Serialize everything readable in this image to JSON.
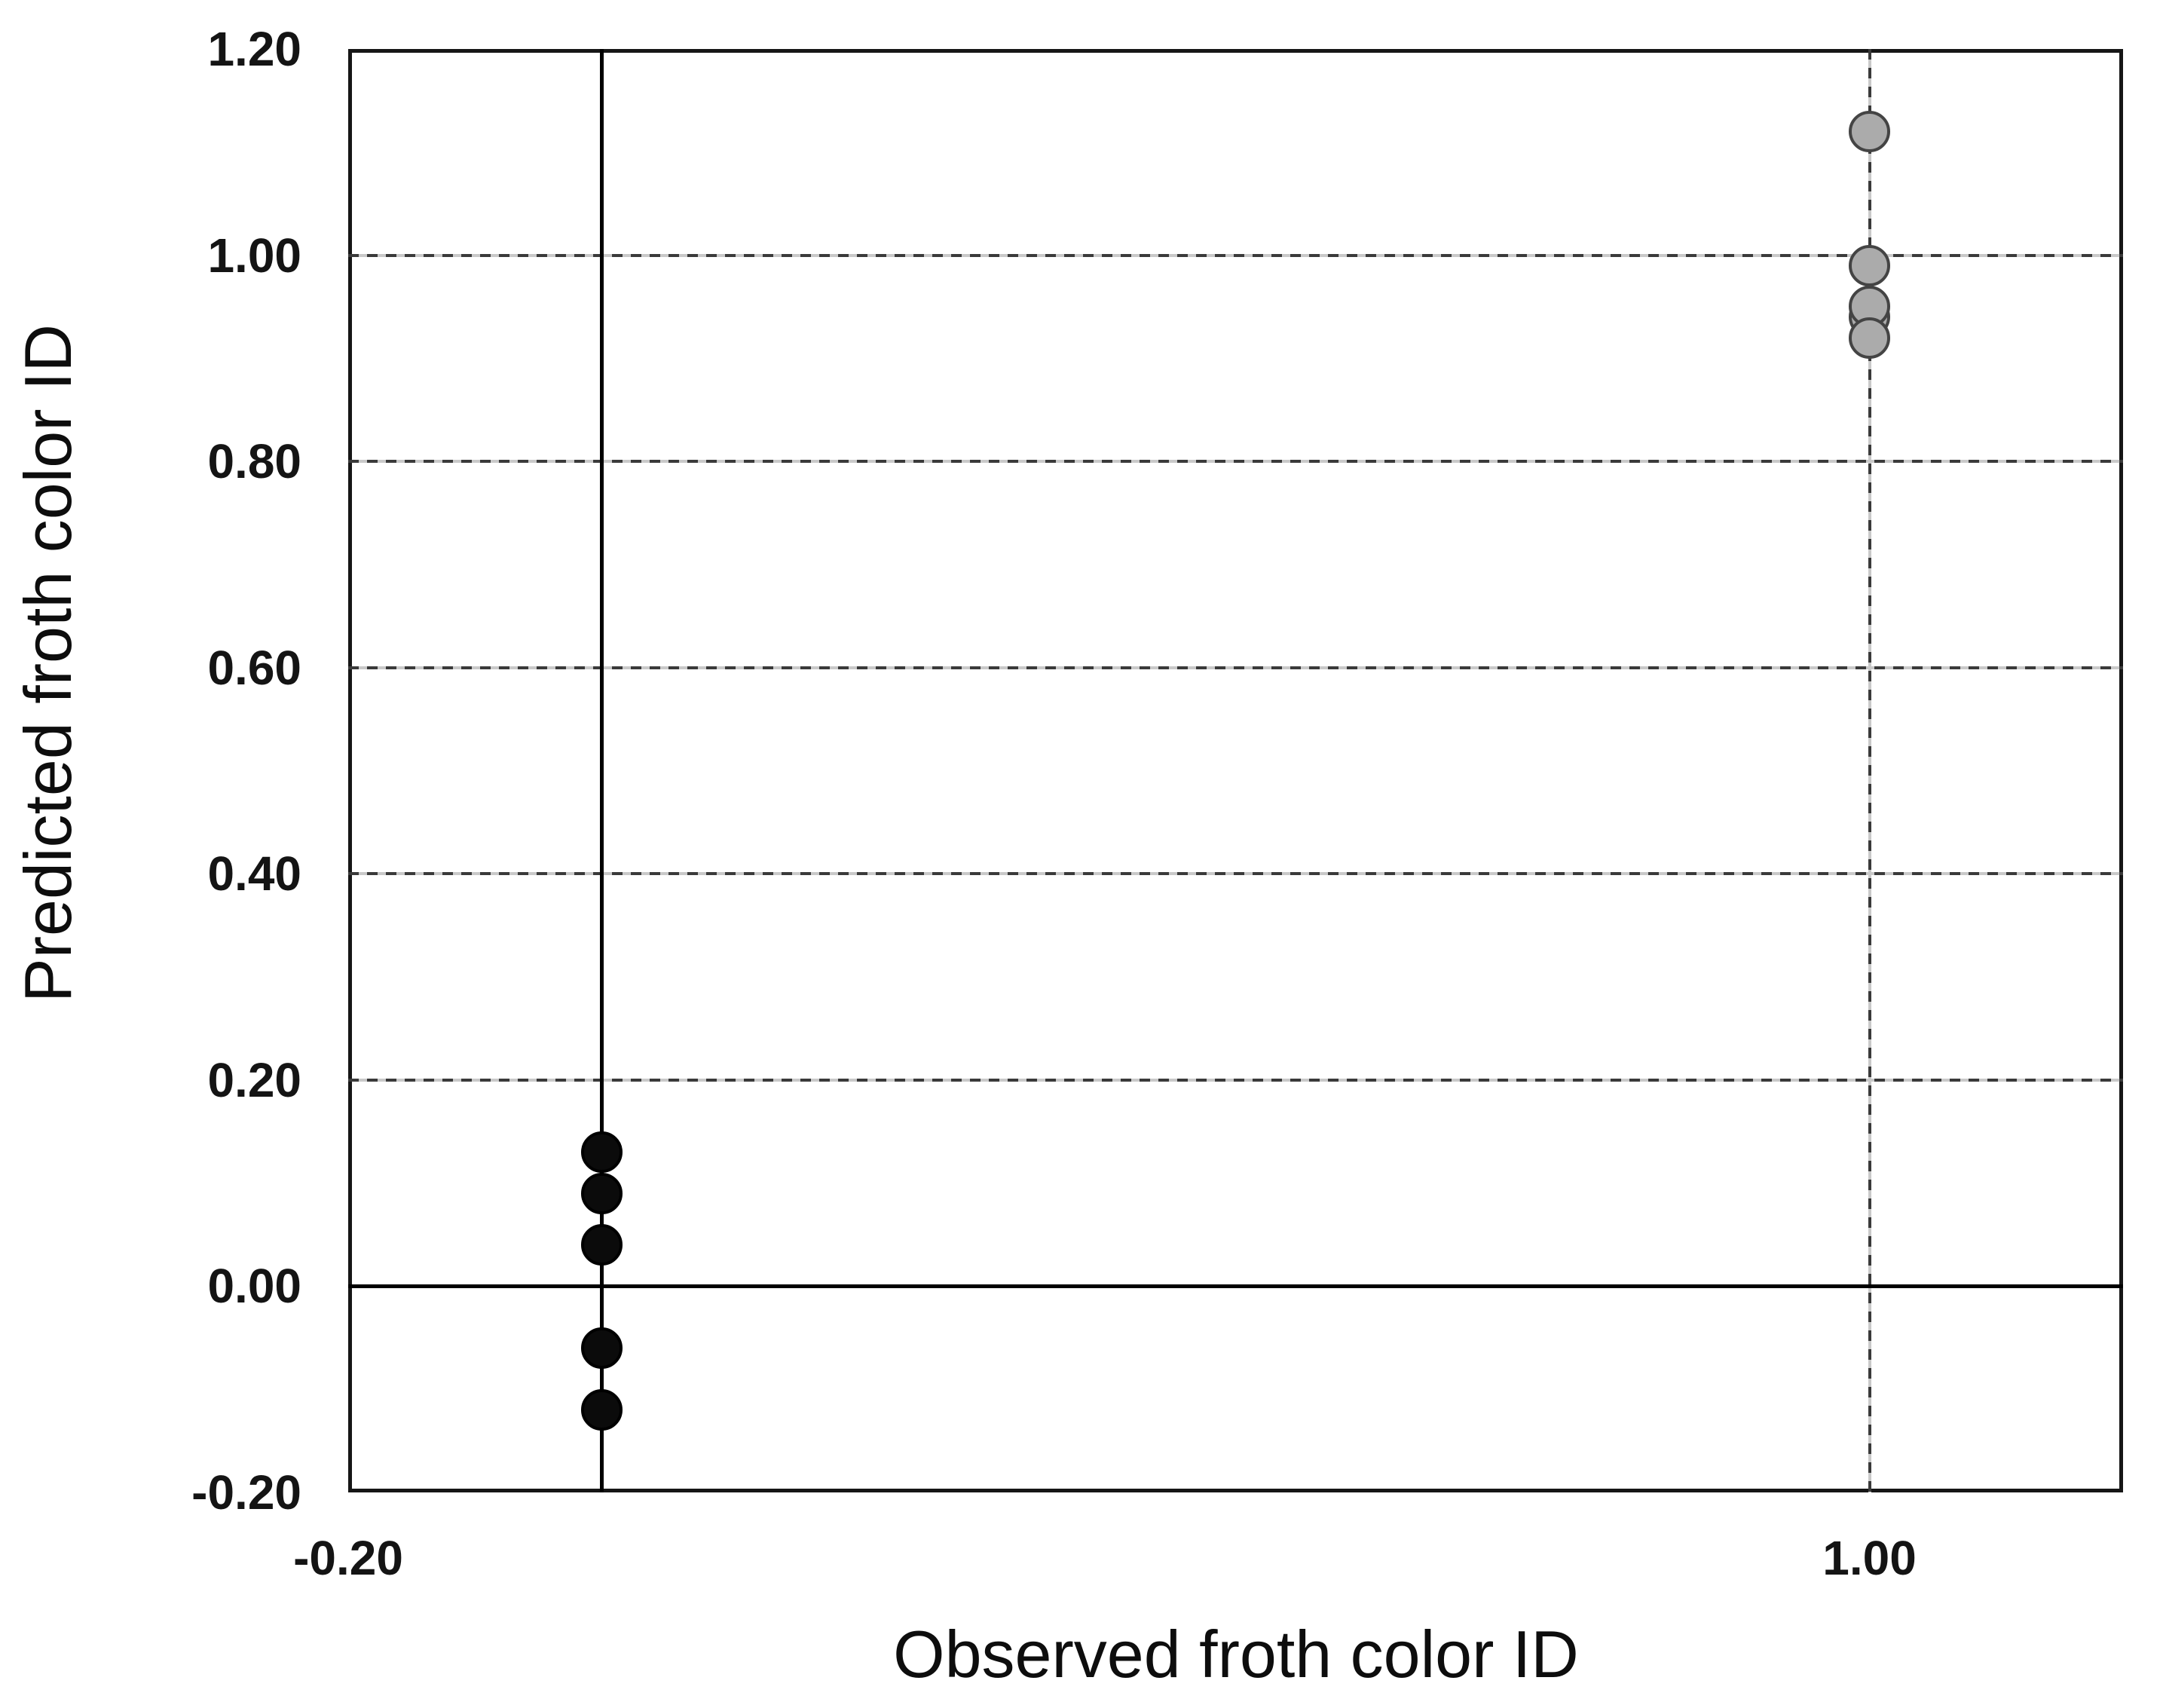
{
  "figure": {
    "background": "#ffffff"
  },
  "chart_data": {
    "type": "scatter",
    "title": "",
    "xlabel": "Observed froth color ID",
    "ylabel": "Predicted froth color ID",
    "xlim": [
      -0.2,
      1.2
    ],
    "ylim": [
      -0.2,
      1.2
    ],
    "x_tick_values": [
      -0.2,
      1.0
    ],
    "x_tick_labels": [
      "-0.20",
      "1.00"
    ],
    "y_tick_values": [
      1.2,
      1.0,
      0.8,
      0.6,
      0.4,
      0.2,
      0.0,
      -0.2
    ],
    "y_tick_labels": [
      "1.20",
      "1.00",
      "0.80",
      "0.60",
      "0.40",
      "0.20",
      "0.00",
      "-0.20"
    ],
    "grid": {
      "dashed_horizontal_at_y": [
        1.0,
        0.8,
        0.6,
        0.4,
        0.2
      ],
      "dashed_vertical_at_x": [
        1.0
      ],
      "solid_horizontal_at_y": [
        0.0
      ],
      "solid_vertical_at_x": [
        0.0
      ]
    },
    "legend": null,
    "series": [
      {
        "name": "black-filled-markers",
        "marker": "circle",
        "fill": "#0b0b0b",
        "stroke": "#000000",
        "points": [
          {
            "x": 0.0,
            "y": 0.13
          },
          {
            "x": 0.0,
            "y": 0.09
          },
          {
            "x": 0.0,
            "y": 0.04
          },
          {
            "x": 0.0,
            "y": -0.06
          },
          {
            "x": 0.0,
            "y": -0.12
          }
        ]
      },
      {
        "name": "gray-filled-markers",
        "marker": "circle",
        "fill": "#ababab",
        "stroke": "#444444",
        "points": [
          {
            "x": 1.0,
            "y": 1.12
          },
          {
            "x": 1.0,
            "y": 0.99
          },
          {
            "x": 1.0,
            "y": 0.94
          },
          {
            "x": 1.0,
            "y": 0.95
          },
          {
            "x": 1.0,
            "y": 0.92
          }
        ]
      }
    ],
    "colors": {
      "axis_line": "#000000",
      "grid_dash": "#3a3a3a",
      "plot_border": "#161616",
      "tick_text": "#141414",
      "title_text": "#0d0d0d",
      "background": "#ffffff"
    }
  }
}
